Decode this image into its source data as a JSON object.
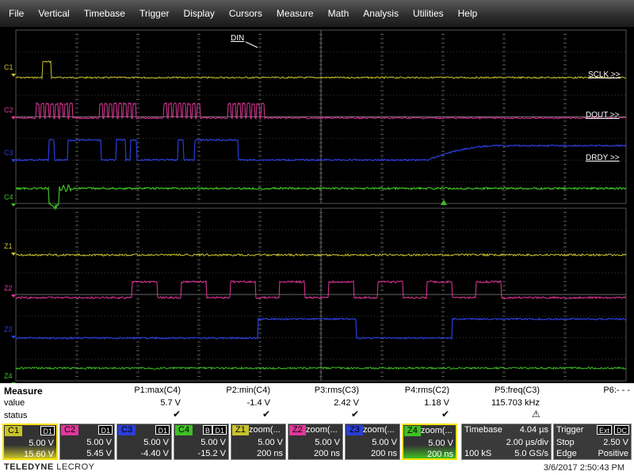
{
  "menu": [
    "File",
    "Vertical",
    "Timebase",
    "Trigger",
    "Display",
    "Cursors",
    "Measure",
    "Math",
    "Analysis",
    "Utilities",
    "Help"
  ],
  "traces": {
    "C1": {
      "label": "C1",
      "color": "#c9c32b",
      "name": "DIN"
    },
    "C2": {
      "label": "C2",
      "color": "#e0389a",
      "name": "SCLK >>"
    },
    "C3": {
      "label": "C3",
      "color": "#2a3ed8",
      "name": "DOUT >>"
    },
    "C4": {
      "label": "C4",
      "color": "#3fbf24",
      "name": "DRDY >>"
    },
    "Z1": {
      "label": "Z1",
      "color": "#c9c32b"
    },
    "Z2": {
      "label": "Z2",
      "color": "#e0389a"
    },
    "Z3": {
      "label": "Z3",
      "color": "#2a3ed8"
    },
    "Z4": {
      "label": "Z4",
      "color": "#3fbf24"
    }
  },
  "measure": {
    "title": "Measure",
    "row_labels": [
      "value",
      "status"
    ],
    "params": [
      {
        "name": "P1:max(C4)",
        "value": "5.7 V",
        "status": "check"
      },
      {
        "name": "P2:min(C4)",
        "value": "-1.4 V",
        "status": "check"
      },
      {
        "name": "P3:rms(C3)",
        "value": "2.42 V",
        "status": "check"
      },
      {
        "name": "P4:rms(C2)",
        "value": "1.18 V",
        "status": "check"
      },
      {
        "name": "P5:freq(C3)",
        "value": "115.703 kHz",
        "status": "warn"
      },
      {
        "name": "P6:- - -",
        "value": "",
        "status": ""
      }
    ]
  },
  "descriptors": [
    {
      "tag": "C1",
      "tagright": "D1",
      "v1": "5.00 V",
      "v2": "15.60 V",
      "color": "#c9c32b",
      "selected": true
    },
    {
      "tag": "C2",
      "tagright": "D1",
      "v1": "5.00 V",
      "v2": "5.45 V",
      "color": "#e0389a"
    },
    {
      "tag": "C3",
      "tagright": "D1",
      "v1": "5.00 V",
      "v2": "-4.40 V",
      "color": "#2a3ed8"
    },
    {
      "tag": "C4",
      "tagright": "D1",
      "tagright2": "B",
      "v1": "5.00 V",
      "v2": "-15.2 V",
      "color": "#3fbf24"
    },
    {
      "tag": "Z1",
      "label": "zoom(...",
      "v1": "5.00 V",
      "v2": "200 ns",
      "color": "#c9c32b"
    },
    {
      "tag": "Z2",
      "label": "zoom(...",
      "v1": "5.00 V",
      "v2": "200 ns",
      "color": "#e0389a"
    },
    {
      "tag": "Z3",
      "label": "zoom(...",
      "v1": "5.00 V",
      "v2": "200 ns",
      "color": "#2a3ed8"
    },
    {
      "tag": "Z4",
      "label": "zoom(...",
      "v1": "5.00 V",
      "v2": "200 ns",
      "color": "#3fbf24",
      "selected": true
    }
  ],
  "timebase": {
    "title": "Timebase",
    "offset": "4.04 µs",
    "per_div": "2.00 µs/div",
    "samples": "100 kS",
    "rate": "5.0 GS/s"
  },
  "trigger": {
    "title": "Trigger",
    "tag1": "Ext",
    "tag2": "DC",
    "mode": "Stop",
    "level": "2.50 V",
    "type": "Edge",
    "slope": "Positive"
  },
  "brand": {
    "name": "TELEDYNE",
    "sub": "LECROY"
  },
  "datetime": "3/6/2017 2:50:43 PM"
}
